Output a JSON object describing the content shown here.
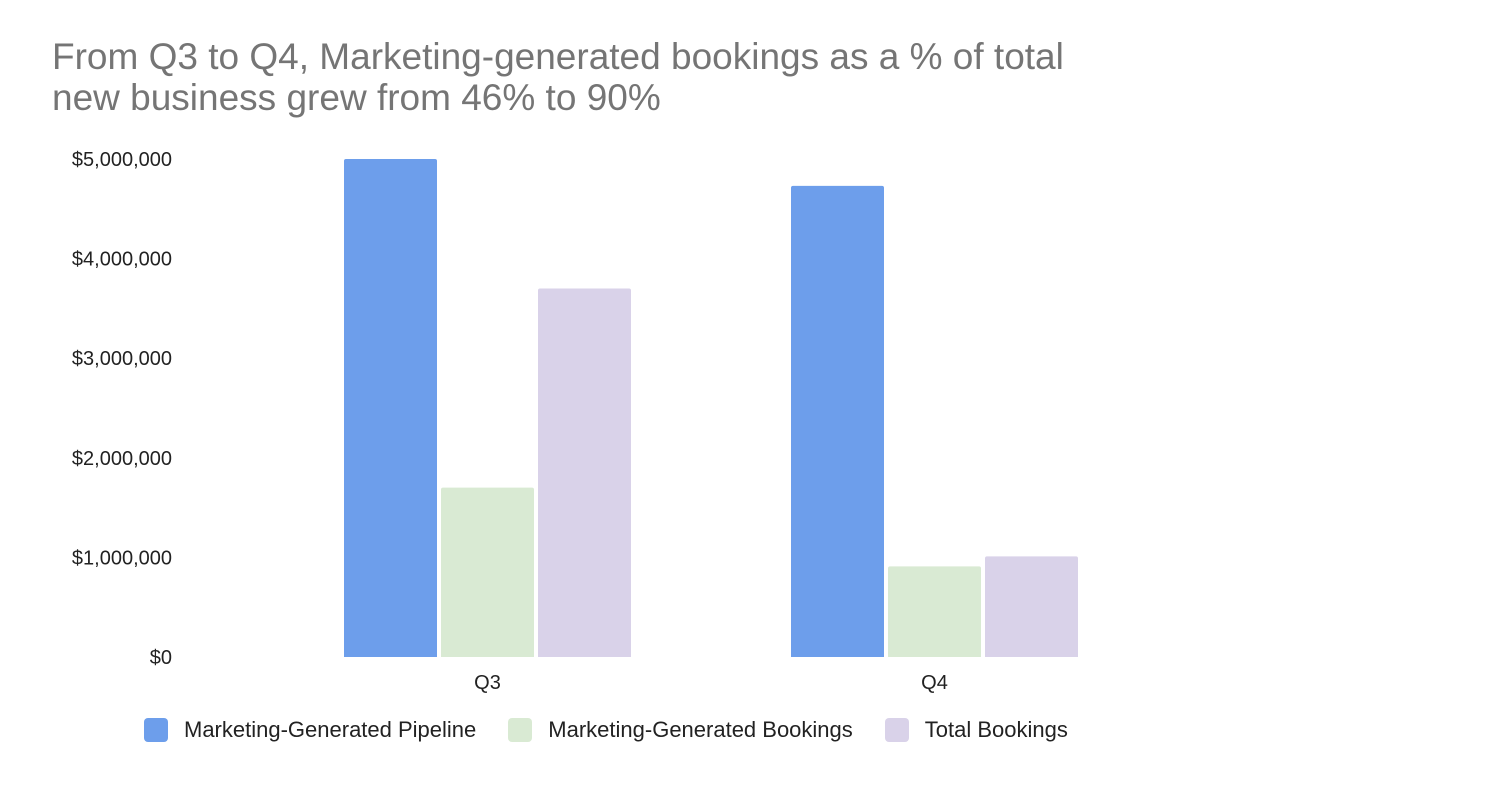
{
  "chart_data": {
    "type": "bar",
    "title_lines": [
      "From Q3 to Q4, Marketing-generated bookings as a % of total",
      "new business grew from 46% to 90%"
    ],
    "categories": [
      "Q3",
      "Q4"
    ],
    "series": [
      {
        "name": "Marketing-Generated Pipeline",
        "color": "#6d9eeb",
        "values": [
          5000000,
          4730000
        ]
      },
      {
        "name": "Marketing-Generated Bookings",
        "color": "#d9ead3",
        "values": [
          1700000,
          910000
        ]
      },
      {
        "name": "Total Bookings",
        "color": "#d9d2e9",
        "values": [
          3700000,
          1010000
        ]
      }
    ],
    "ylim": [
      0,
      5000000
    ],
    "yticks": [
      0,
      1000000,
      2000000,
      3000000,
      4000000,
      5000000
    ],
    "ytick_labels": [
      "$0",
      "$1,000,000",
      "$2,000,000",
      "$3,000,000",
      "$4,000,000",
      "$5,000,000"
    ],
    "grid": false,
    "legend_position": "bottom-left"
  }
}
